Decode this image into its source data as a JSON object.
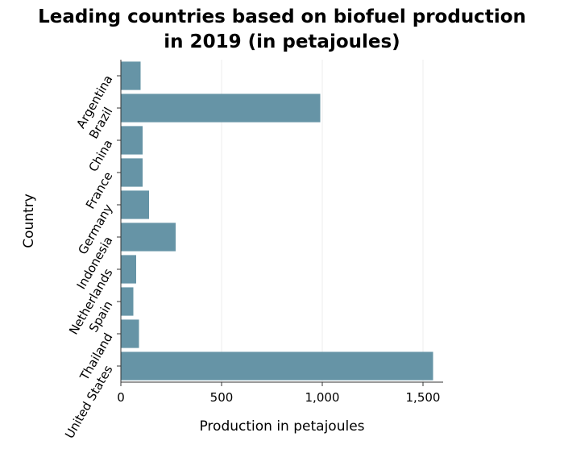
{
  "chart_data": {
    "type": "bar",
    "orientation": "horizontal",
    "title_line1": "Leading countries based on biofuel production",
    "title_line2": "in 2019 (in petajoules)",
    "xlabel": "Production in petajoules",
    "ylabel": "Country",
    "categories": [
      "Argentina",
      "Brazil",
      "China",
      "France",
      "Germany",
      "Indonesia",
      "Netherlands",
      "Spain",
      "Thailand",
      "United States"
    ],
    "values": [
      98,
      990,
      108,
      108,
      140,
      272,
      76,
      62,
      90,
      1550
    ],
    "xlim": [
      0,
      1600
    ],
    "xticks": [
      0,
      500,
      1000,
      1500
    ],
    "xtick_labels": [
      "0",
      "500",
      "1,000",
      "1,500"
    ],
    "grid": "vertical",
    "bar_color": "#6694a6"
  }
}
